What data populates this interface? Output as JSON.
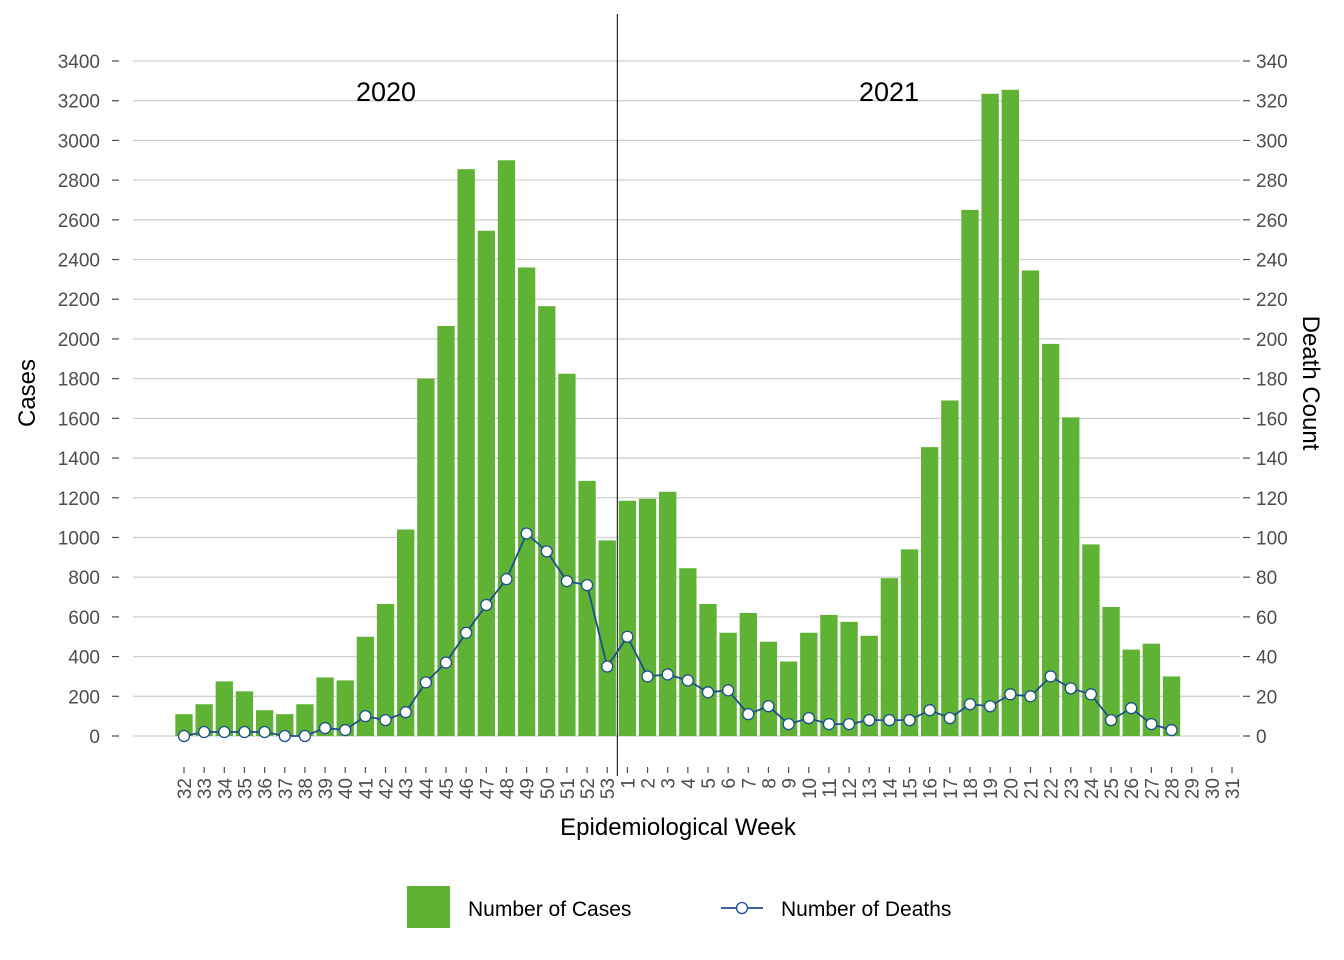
{
  "chart_data": {
    "type": "bar",
    "xlabel": "Epidemiological Week",
    "ylabel": "Cases",
    "y2label": "Death Count",
    "ylim": [
      0,
      3400
    ],
    "y2lim": [
      0,
      340
    ],
    "yticks": [
      0,
      200,
      400,
      600,
      800,
      1000,
      1200,
      1400,
      1600,
      1800,
      2000,
      2200,
      2400,
      2600,
      2800,
      3000,
      3200,
      3400
    ],
    "y2ticks": [
      0,
      20,
      40,
      60,
      80,
      100,
      120,
      140,
      160,
      180,
      200,
      220,
      240,
      260,
      280,
      300,
      320,
      340
    ],
    "grid": true,
    "legend_position": "bottom",
    "annotations": [
      {
        "text": "2020"
      },
      {
        "text": "2021"
      }
    ],
    "categories": [
      "32",
      "33",
      "34",
      "35",
      "36",
      "37",
      "38",
      "39",
      "40",
      "41",
      "42",
      "43",
      "44",
      "45",
      "46",
      "47",
      "48",
      "49",
      "50",
      "51",
      "52",
      "53",
      "1",
      "2",
      "3",
      "4",
      "5",
      "6",
      "7",
      "8",
      "9",
      "10",
      "11",
      "12",
      "13",
      "14",
      "15",
      "16",
      "17",
      "18",
      "19",
      "20",
      "21",
      "22",
      "23",
      "24",
      "25",
      "26",
      "27",
      "28",
      "29",
      "30",
      "31"
    ],
    "series": [
      {
        "name": "Number of Cases",
        "type": "bar",
        "axis": "left",
        "color": "#5fb233",
        "values": [
          110,
          160,
          275,
          225,
          130,
          110,
          160,
          295,
          280,
          500,
          665,
          1040,
          1800,
          2065,
          2855,
          2545,
          2900,
          2360,
          2165,
          1825,
          1285,
          985,
          1185,
          1195,
          1230,
          845,
          665,
          520,
          620,
          475,
          375,
          520,
          610,
          575,
          505,
          795,
          940,
          1455,
          1690,
          2650,
          3235,
          3255,
          2345,
          1975,
          1605,
          965,
          650,
          435,
          465,
          300,
          null,
          null,
          null
        ]
      },
      {
        "name": "Number of Deaths",
        "type": "line",
        "axis": "right",
        "color": "#1f4e8c",
        "values": [
          0,
          2,
          2,
          2,
          2,
          0,
          0,
          4,
          3,
          10,
          8,
          12,
          27,
          37,
          52,
          66,
          79,
          102,
          93,
          78,
          76,
          35,
          50,
          30,
          31,
          28,
          22,
          23,
          11,
          15,
          6,
          9,
          6,
          6,
          8,
          8,
          8,
          13,
          9,
          16,
          15,
          21,
          20,
          30,
          24,
          21,
          8,
          14,
          6,
          3,
          null,
          null,
          null
        ]
      }
    ]
  }
}
